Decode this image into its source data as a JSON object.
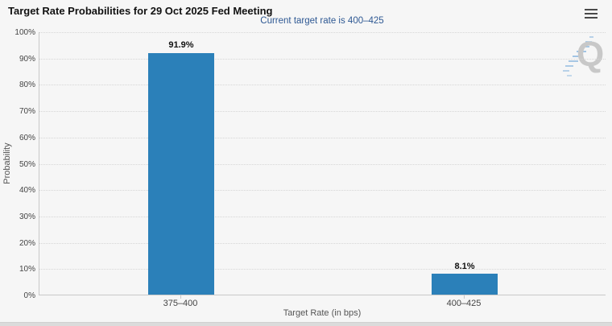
{
  "header": {
    "title": "Target Rate Probabilities for 29 Oct 2025 Fed Meeting",
    "subtitle": "Current target rate is 400–425"
  },
  "chart_data": {
    "type": "bar",
    "title": "Target Rate Probabilities for 29 Oct 2025 Fed Meeting",
    "subtitle": "Current target rate is 400–425",
    "categories": [
      "375–400",
      "400–425"
    ],
    "values": [
      91.9,
      8.1
    ],
    "value_labels": [
      "91.9%",
      "8.1%"
    ],
    "xlabel": "Target Rate (in bps)",
    "ylabel": "Probability",
    "ylim": [
      0,
      100
    ],
    "ytick_step": 10,
    "yticks": [
      "0%",
      "10%",
      "20%",
      "30%",
      "40%",
      "50%",
      "60%",
      "70%",
      "80%",
      "90%",
      "100%"
    ],
    "grid": "dotted horizontal",
    "legend": "none",
    "bar_color": "#2b80b9"
  },
  "watermark": {
    "letter": "Q"
  },
  "colors": {
    "background": "#f6f6f6",
    "bar": "#2b80b9",
    "subtitle_text": "#2e5893",
    "gridline": "#d6d6d6",
    "axis_line": "#c8c8c8",
    "watermark_gray": "#c8c8c8",
    "watermark_blue": "#6aa3d8"
  }
}
